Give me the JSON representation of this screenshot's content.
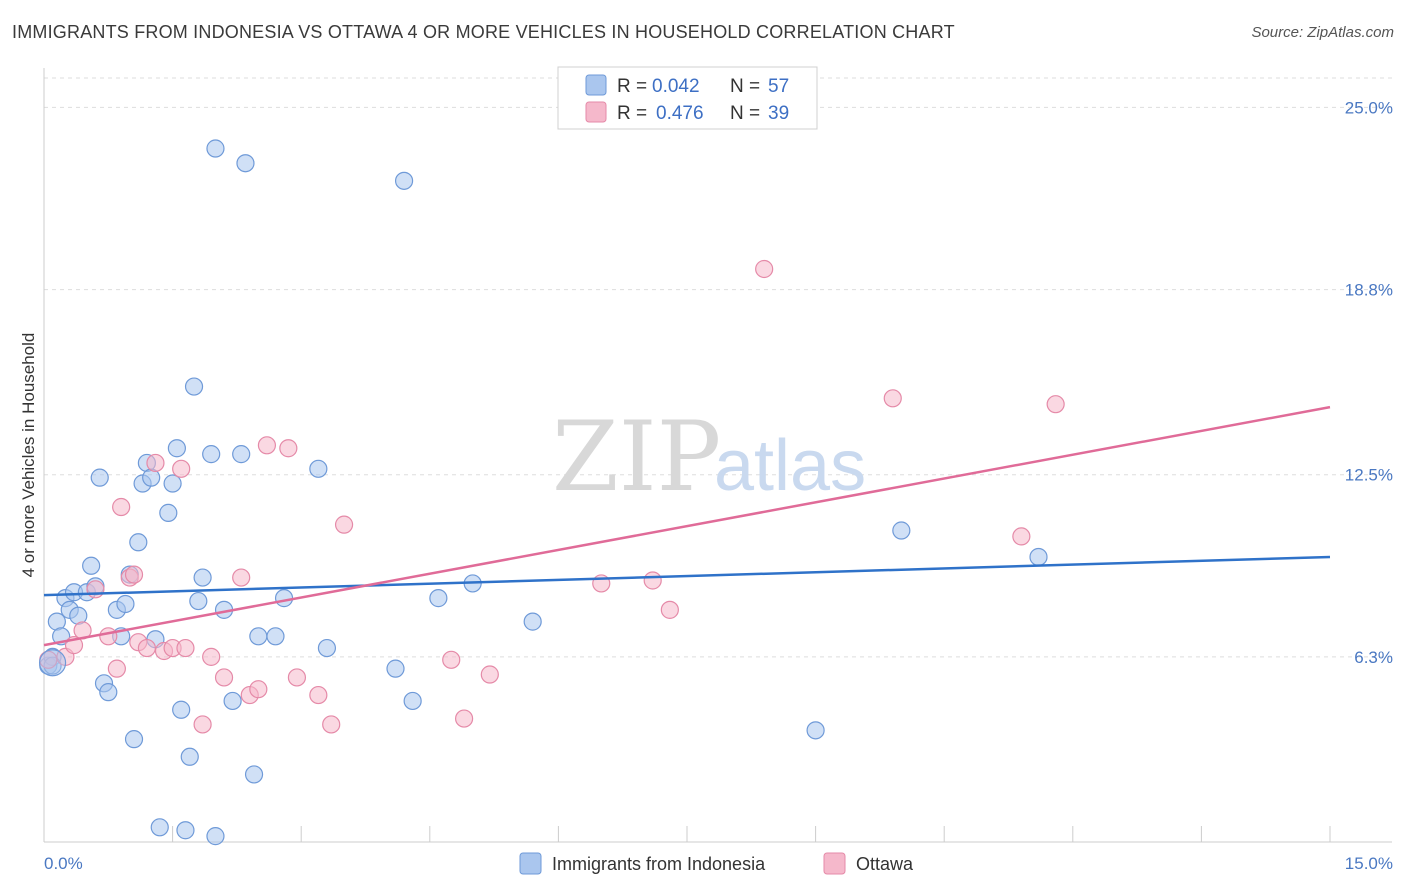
{
  "title": "IMMIGRANTS FROM INDONESIA VS OTTAWA 4 OR MORE VEHICLES IN HOUSEHOLD CORRELATION CHART",
  "source": "Source: ZipAtlas.com",
  "watermark": {
    "zip": "ZIP",
    "atlas": "atlas"
  },
  "colors": {
    "blue_fill": "#aac6ee",
    "blue_stroke": "#6f9ad8",
    "blue_line": "#2f72c9",
    "pink_fill": "#f5b8cb",
    "pink_stroke": "#e58aa8",
    "pink_line": "#e06b98",
    "grid": "#dddddd",
    "axis_text": "#4a78c2"
  },
  "legend": {
    "rows": [
      {
        "r_label": "R = ",
        "r_value": "0.042",
        "n_label": "N = ",
        "n_value": "57"
      },
      {
        "r_label": "R = ",
        "r_value": "0.476",
        "n_label": "N = ",
        "n_value": "39"
      }
    ]
  },
  "chart_data": {
    "type": "scatter",
    "title": "IMMIGRANTS FROM INDONESIA VS OTTAWA 4 OR MORE VEHICLES IN HOUSEHOLD CORRELATION CHART",
    "xlabel": "",
    "ylabel": "4 or more Vehicles in Household",
    "xlim": [
      0,
      15
    ],
    "ylim": [
      0,
      26
    ],
    "x_tick_labels": [
      "0.0%",
      "15.0%"
    ],
    "y_ticks": [
      6.3,
      12.5,
      18.8,
      25.0
    ],
    "y_tick_labels": [
      "6.3%",
      "12.5%",
      "18.8%",
      "25.0%"
    ],
    "grid": true,
    "legend_position": "bottom",
    "series": [
      {
        "name": "Immigrants from Indonesia",
        "color": "#aac6ee",
        "trend": {
          "x": [
            0,
            15
          ],
          "y": [
            8.4,
            9.7
          ]
        },
        "points": [
          [
            0.05,
            6.0
          ],
          [
            0.1,
            6.3
          ],
          [
            0.15,
            7.5
          ],
          [
            0.2,
            7.0
          ],
          [
            0.25,
            8.3
          ],
          [
            0.3,
            7.9
          ],
          [
            0.35,
            8.5
          ],
          [
            0.4,
            7.7
          ],
          [
            0.5,
            8.5
          ],
          [
            0.55,
            9.4
          ],
          [
            0.6,
            8.7
          ],
          [
            0.65,
            12.4
          ],
          [
            0.7,
            5.4
          ],
          [
            0.75,
            5.1
          ],
          [
            0.85,
            7.9
          ],
          [
            0.9,
            7.0
          ],
          [
            0.95,
            8.1
          ],
          [
            1.0,
            9.1
          ],
          [
            1.05,
            3.5
          ],
          [
            1.1,
            10.2
          ],
          [
            1.15,
            12.2
          ],
          [
            1.2,
            12.9
          ],
          [
            1.25,
            12.4
          ],
          [
            1.3,
            6.9
          ],
          [
            1.35,
            0.5
          ],
          [
            1.45,
            11.2
          ],
          [
            1.5,
            12.2
          ],
          [
            1.55,
            13.4
          ],
          [
            1.6,
            4.5
          ],
          [
            1.65,
            0.4
          ],
          [
            1.7,
            2.9
          ],
          [
            1.75,
            15.5
          ],
          [
            1.8,
            8.2
          ],
          [
            1.85,
            9.0
          ],
          [
            1.95,
            13.2
          ],
          [
            2.0,
            0.2
          ],
          [
            2.1,
            7.9
          ],
          [
            2.2,
            4.8
          ],
          [
            2.3,
            13.2
          ],
          [
            2.45,
            2.3
          ],
          [
            2.5,
            7.0
          ],
          [
            2.7,
            7.0
          ],
          [
            2.8,
            8.3
          ],
          [
            3.2,
            12.7
          ],
          [
            3.3,
            6.6
          ],
          [
            2.0,
            23.6
          ],
          [
            2.35,
            23.1
          ],
          [
            4.2,
            22.5
          ],
          [
            4.1,
            5.9
          ],
          [
            4.3,
            4.8
          ],
          [
            4.6,
            8.3
          ],
          [
            5.0,
            8.8
          ],
          [
            5.7,
            7.5
          ],
          [
            9.0,
            3.8
          ],
          [
            10.0,
            10.6
          ],
          [
            11.6,
            9.7
          ],
          [
            0.1,
            6.0
          ]
        ]
      },
      {
        "name": "Ottawa",
        "color": "#f5b8cb",
        "trend": {
          "x": [
            0,
            15
          ],
          "y": [
            6.7,
            14.8
          ]
        },
        "points": [
          [
            0.05,
            6.2
          ],
          [
            0.25,
            6.3
          ],
          [
            0.35,
            6.7
          ],
          [
            0.45,
            7.2
          ],
          [
            0.6,
            8.6
          ],
          [
            0.75,
            7.0
          ],
          [
            0.85,
            5.9
          ],
          [
            0.9,
            11.4
          ],
          [
            1.0,
            9.0
          ],
          [
            1.05,
            9.1
          ],
          [
            1.1,
            6.8
          ],
          [
            1.2,
            6.6
          ],
          [
            1.3,
            12.9
          ],
          [
            1.4,
            6.5
          ],
          [
            1.5,
            6.6
          ],
          [
            1.6,
            12.7
          ],
          [
            1.65,
            6.6
          ],
          [
            1.85,
            4.0
          ],
          [
            1.95,
            6.3
          ],
          [
            2.1,
            5.6
          ],
          [
            2.3,
            9.0
          ],
          [
            2.4,
            5.0
          ],
          [
            2.5,
            5.2
          ],
          [
            2.6,
            13.5
          ],
          [
            2.85,
            13.4
          ],
          [
            2.95,
            5.6
          ],
          [
            3.2,
            5.0
          ],
          [
            3.35,
            4.0
          ],
          [
            3.5,
            10.8
          ],
          [
            4.75,
            6.2
          ],
          [
            4.9,
            4.2
          ],
          [
            5.2,
            5.7
          ],
          [
            6.5,
            8.8
          ],
          [
            7.1,
            8.9
          ],
          [
            7.3,
            7.9
          ],
          [
            8.4,
            19.5
          ],
          [
            9.9,
            15.1
          ],
          [
            11.4,
            10.4
          ],
          [
            11.8,
            14.9
          ]
        ]
      }
    ]
  }
}
